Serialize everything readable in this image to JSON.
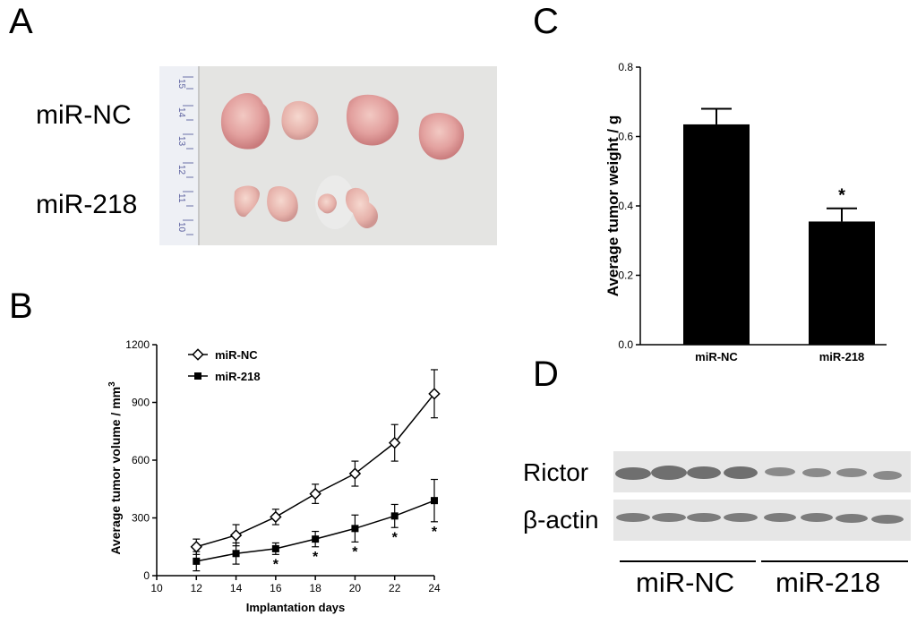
{
  "panels": {
    "a": {
      "letter": "A",
      "row_labels": [
        "miR-NC",
        "miR-218"
      ],
      "ruler_numbers": [
        "15",
        "14",
        "13",
        "12",
        "11",
        "10"
      ]
    },
    "b": {
      "letter": "B"
    },
    "c": {
      "letter": "C"
    },
    "d": {
      "letter": "D",
      "blot_labels": [
        "Rictor",
        "β-actin"
      ],
      "group_labels": [
        "miR-NC",
        "miR-218"
      ]
    }
  },
  "chart_data": [
    {
      "id": "tumor-volume",
      "type": "line",
      "title": "",
      "xlabel": "Implantation days",
      "ylabel": "Average tumor volume / mm",
      "ylabel_superscript": "3",
      "xlim": [
        10,
        24
      ],
      "ylim": [
        0,
        1200
      ],
      "xticks": [
        10,
        12,
        14,
        16,
        18,
        20,
        22,
        24
      ],
      "yticks": [
        0,
        300,
        600,
        900,
        1200
      ],
      "x": [
        12,
        14,
        16,
        18,
        20,
        22,
        24
      ],
      "series": [
        {
          "name": "miR-NC",
          "marker": "diamond-open",
          "values": [
            150,
            210,
            305,
            425,
            530,
            690,
            945
          ],
          "errors": [
            40,
            55,
            40,
            50,
            65,
            95,
            125
          ]
        },
        {
          "name": "miR-218",
          "marker": "square-filled",
          "values": [
            75,
            115,
            140,
            190,
            245,
            310,
            390
          ],
          "errors": [
            50,
            55,
            30,
            40,
            70,
            60,
            110
          ]
        }
      ],
      "significance": [
        {
          "x": 16,
          "label": "*"
        },
        {
          "x": 18,
          "label": "*"
        },
        {
          "x": 20,
          "label": "*"
        },
        {
          "x": 22,
          "label": "*"
        },
        {
          "x": 24,
          "label": "*"
        }
      ],
      "legend_position": "top-left"
    },
    {
      "id": "tumor-weight",
      "type": "bar",
      "title": "",
      "xlabel": "",
      "ylabel": "Average tumor weight / g",
      "ylim": [
        0,
        0.8
      ],
      "yticks": [
        "0.0",
        "0.2",
        "0.4",
        "0.6",
        "0.8"
      ],
      "categories": [
        "miR-NC",
        "miR-218"
      ],
      "values": [
        0.635,
        0.355
      ],
      "errors": [
        0.045,
        0.038
      ],
      "significance": [
        {
          "category": "miR-218",
          "label": "*"
        }
      ]
    }
  ]
}
